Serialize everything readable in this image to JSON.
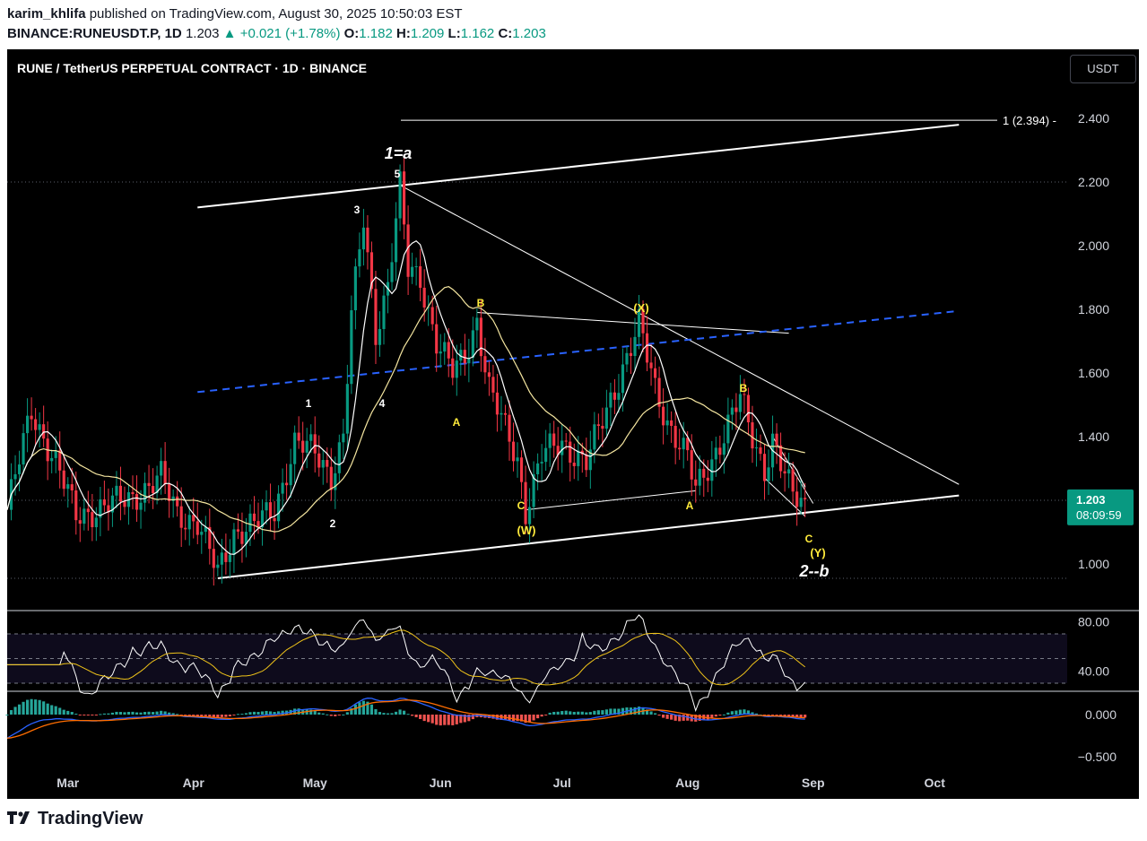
{
  "header": {
    "publisher": "karim_khlifa",
    "published_text": "published on TradingView.com, August 30, 2025 10:50:03 EST",
    "symbol": "BINANCE:RUNEUSDT.P, 1D",
    "last": "1.203",
    "change": "+0.021 (+1.78%)",
    "o_label": "O:",
    "o": "1.182",
    "h_label": "H:",
    "h": "1.209",
    "l_label": "L:",
    "l": "1.162",
    "c_label": "C:",
    "c": "1.203"
  },
  "chart_title": "RUNE / TetherUS PERPETUAL CONTRACT · 1D · BINANCE",
  "currency_button": "USDT",
  "price_tag": {
    "value": "1.203",
    "countdown": "08:09:59",
    "color": "#089981"
  },
  "fib_label": "1 (2.394) -",
  "footer_brand": "TradingView",
  "colors": {
    "up": "#089981",
    "down": "#f23645",
    "ma_fast": "#ffffff",
    "ma_slow": "#f5e6a0",
    "midline": "#2962ff",
    "label_yellow": "#ffeb3b"
  },
  "annotations": [
    {
      "text": "1=a",
      "style": "big"
    },
    {
      "text": "5"
    },
    {
      "text": "3"
    },
    {
      "text": "1"
    },
    {
      "text": "4"
    },
    {
      "text": "2"
    },
    {
      "text": "B",
      "color": "yellow"
    },
    {
      "text": "A",
      "color": "yellow"
    },
    {
      "text": "C",
      "color": "yellow"
    },
    {
      "text": "(W)",
      "color": "yellow"
    },
    {
      "text": "(X)",
      "color": "yellow"
    },
    {
      "text": "A",
      "color": "yellow"
    },
    {
      "text": "B",
      "color": "yellow"
    },
    {
      "text": "C",
      "color": "yellow"
    },
    {
      "text": "(Y)",
      "color": "yellow"
    },
    {
      "text": "2--b",
      "style": "big"
    }
  ],
  "chart_data": [
    {
      "type": "candlestick",
      "title": "RUNE / TetherUS PERPETUAL CONTRACT · 1D · BINANCE",
      "x_ticks": [
        "Mar",
        "Apr",
        "May",
        "Jun",
        "Jul",
        "Aug",
        "Sep",
        "Oct"
      ],
      "y_ticks": [
        "1.000",
        "1.400",
        "1.600",
        "1.800",
        "2.000",
        "2.200",
        "2.400"
      ],
      "ylim": [
        0.93,
        2.52
      ],
      "close_path": [
        [
          "2025-02-14",
          1.17
        ],
        [
          "2025-02-20",
          1.48
        ],
        [
          "2025-02-26",
          1.32
        ],
        [
          "2025-03-03",
          1.15
        ],
        [
          "2025-03-10",
          1.18
        ],
        [
          "2025-03-17",
          1.21
        ],
        [
          "2025-03-24",
          1.27
        ],
        [
          "2025-03-28",
          1.16
        ],
        [
          "2025-04-02",
          1.13
        ],
        [
          "2025-04-07",
          0.97
        ],
        [
          "2025-04-11",
          1.1
        ],
        [
          "2025-04-16",
          1.12
        ],
        [
          "2025-04-21",
          1.17
        ],
        [
          "2025-04-26",
          1.38
        ],
        [
          "2025-05-01",
          1.35
        ],
        [
          "2025-05-05",
          1.28
        ],
        [
          "2025-05-08",
          1.4
        ],
        [
          "2025-05-10",
          1.78
        ],
        [
          "2025-05-13",
          2.08
        ],
        [
          "2025-05-16",
          1.73
        ],
        [
          "2025-05-19",
          1.88
        ],
        [
          "2025-05-22",
          2.18
        ],
        [
          "2025-05-24",
          1.92
        ],
        [
          "2025-05-27",
          1.9
        ],
        [
          "2025-05-31",
          1.7
        ],
        [
          "2025-06-04",
          1.6
        ],
        [
          "2025-06-07",
          1.65
        ],
        [
          "2025-06-10",
          1.77
        ],
        [
          "2025-06-13",
          1.55
        ],
        [
          "2025-06-17",
          1.42
        ],
        [
          "2025-06-20",
          1.33
        ],
        [
          "2025-06-22",
          1.17
        ],
        [
          "2025-06-26",
          1.34
        ],
        [
          "2025-07-01",
          1.38
        ],
        [
          "2025-07-07",
          1.32
        ],
        [
          "2025-07-12",
          1.48
        ],
        [
          "2025-07-16",
          1.62
        ],
        [
          "2025-07-20",
          1.75
        ],
        [
          "2025-07-24",
          1.55
        ],
        [
          "2025-07-27",
          1.45
        ],
        [
          "2025-08-01",
          1.33
        ],
        [
          "2025-08-03",
          1.23
        ],
        [
          "2025-08-07",
          1.33
        ],
        [
          "2025-08-10",
          1.41
        ],
        [
          "2025-08-14",
          1.52
        ],
        [
          "2025-08-17",
          1.4
        ],
        [
          "2025-08-20",
          1.3
        ],
        [
          "2025-08-22",
          1.39
        ],
        [
          "2025-08-24",
          1.31
        ],
        [
          "2025-08-27",
          1.21
        ],
        [
          "2025-08-30",
          1.203
        ]
      ],
      "rsi_axis": [
        "80.00",
        "40.00"
      ],
      "macd_axis": [
        "0.000",
        "−0.500"
      ]
    }
  ]
}
